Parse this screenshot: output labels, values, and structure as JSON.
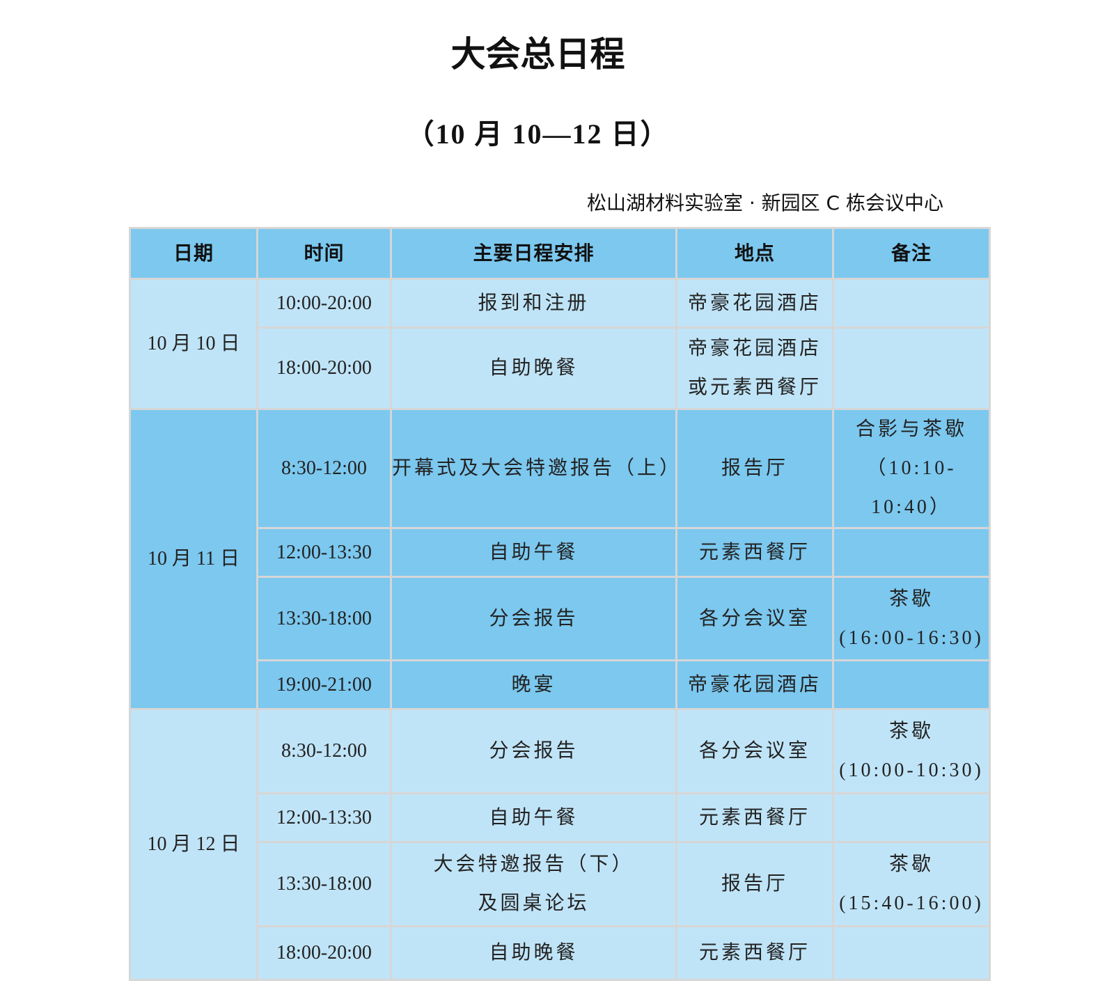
{
  "title": "大会总日程",
  "subtitle": "（10 月 10—12 日）",
  "venue": "松山湖材料实验室 · 新园区 C 栋会议中心",
  "colors": {
    "header_bg": "#7cc8ef",
    "day_light": "#c0e4f7",
    "day_dark": "#7cc8ef"
  },
  "table": {
    "headers": [
      "日期",
      "时间",
      "主要日程安排",
      "地点",
      "备注"
    ],
    "days": [
      {
        "date": "10 月 10 日",
        "rows": [
          {
            "time": "10:00-20:00",
            "event": [
              "报到和注册"
            ],
            "place": [
              "帝豪花园酒店"
            ],
            "note": []
          },
          {
            "time": "18:00-20:00",
            "event": [
              "自助晚餐"
            ],
            "place": [
              "帝豪花园酒店",
              "或元素西餐厅"
            ],
            "note": []
          }
        ]
      },
      {
        "date": "10 月 11 日",
        "rows": [
          {
            "time": "8:30-12:00",
            "event": [
              "开幕式及大会特邀报告（上）"
            ],
            "place": [
              "报告厅"
            ],
            "note": [
              "合影与茶歇",
              "（10:10-10:40）"
            ]
          },
          {
            "time": "12:00-13:30",
            "event": [
              "自助午餐"
            ],
            "place": [
              "元素西餐厅"
            ],
            "note": []
          },
          {
            "time": "13:30-18:00",
            "event": [
              "分会报告"
            ],
            "place": [
              "各分会议室"
            ],
            "note": [
              "茶歇",
              "(16:00-16:30)"
            ]
          },
          {
            "time": "19:00-21:00",
            "event": [
              "晚宴"
            ],
            "place": [
              "帝豪花园酒店"
            ],
            "note": []
          }
        ]
      },
      {
        "date": "10 月 12 日",
        "rows": [
          {
            "time": "8:30-12:00",
            "event": [
              "分会报告"
            ],
            "place": [
              "各分会议室"
            ],
            "note": [
              "茶歇",
              "(10:00-10:30)"
            ]
          },
          {
            "time": "12:00-13:30",
            "event": [
              "自助午餐"
            ],
            "place": [
              "元素西餐厅"
            ],
            "note": []
          },
          {
            "time": "13:30-18:00",
            "event": [
              "大会特邀报告（下）",
              "及圆桌论坛"
            ],
            "place": [
              "报告厅"
            ],
            "note": [
              "茶歇",
              "(15:40-16:00)"
            ]
          },
          {
            "time": "18:00-20:00",
            "event": [
              "自助晚餐"
            ],
            "place": [
              "元素西餐厅"
            ],
            "note": []
          }
        ]
      }
    ]
  }
}
